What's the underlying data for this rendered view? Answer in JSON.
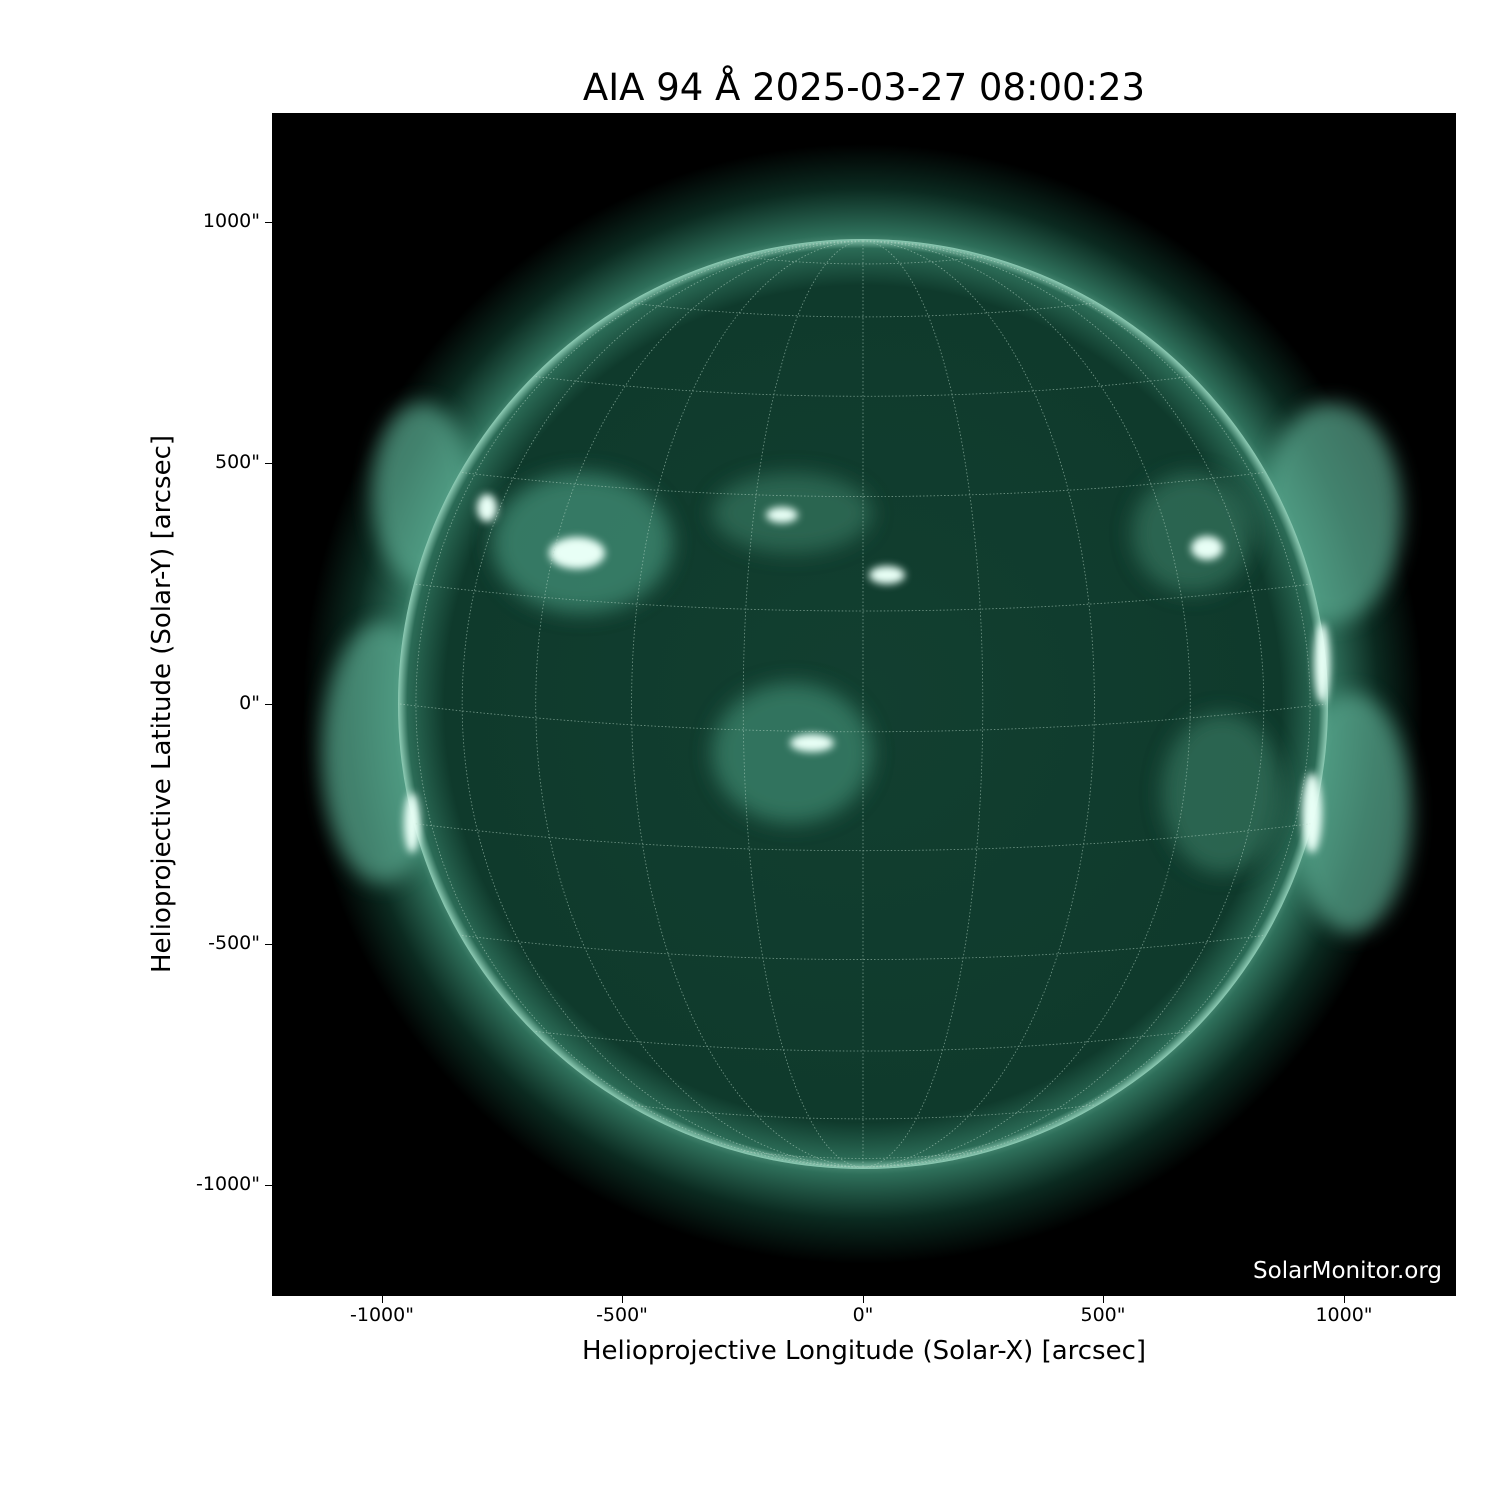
{
  "title": "AIA 94 Å 2025-03-27 08:00:23",
  "xlabel": "Helioprojective Longitude (Solar-X) [arcsec]",
  "ylabel": "Helioprojective Latitude (Solar-Y) [arcsec]",
  "xticks": [
    "-1000\"",
    "-500\"",
    "0\"",
    "500\"",
    "1000\""
  ],
  "yticks": [
    "1000\"",
    "500\"",
    "0\"",
    "-500\"",
    "-1000\""
  ],
  "watermark": "SolarMonitor.org",
  "colors": {
    "disk": "#0f3a2c",
    "corona": "#5fa890",
    "bright": "#e8fff6",
    "grid": "#b8d8c8"
  },
  "grid": {
    "longitude_step_deg": 15,
    "latitude_step_deg": 15
  }
}
